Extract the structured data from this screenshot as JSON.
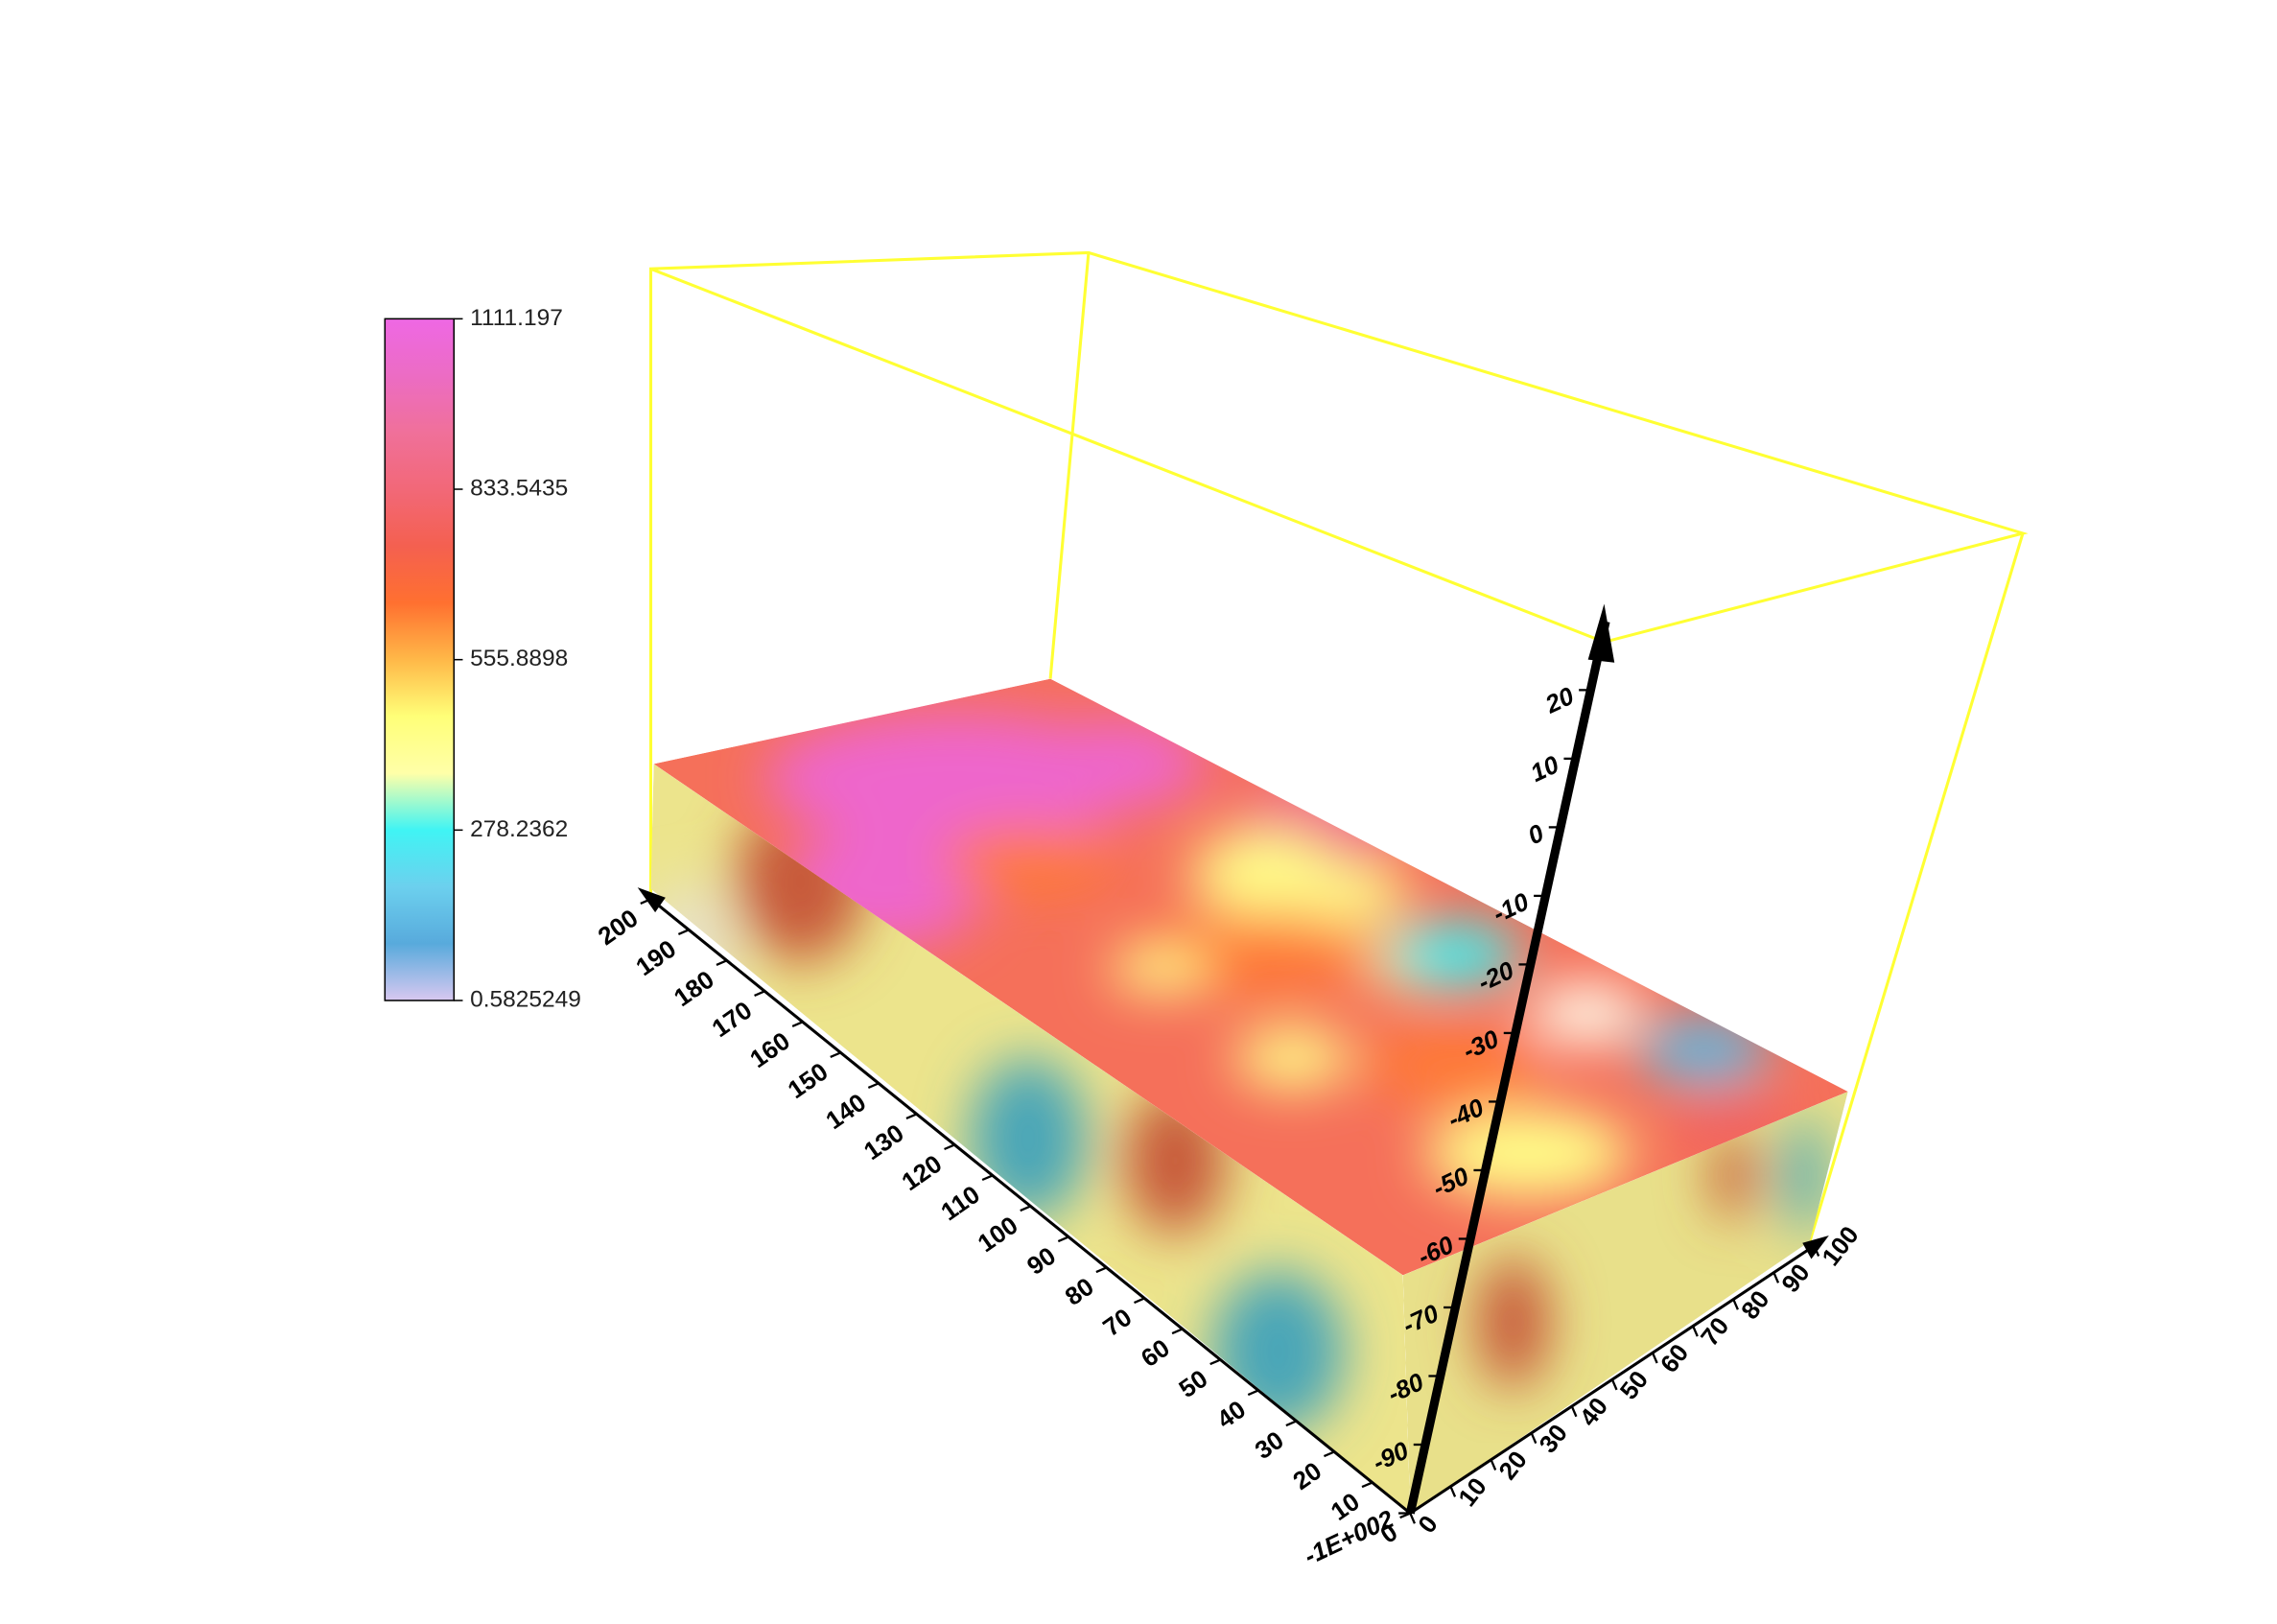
{
  "chart_data": {
    "type": "volume3d",
    "colormap": [
      "#d8c8f0",
      "#58aadc",
      "#6cd0ee",
      "#40f4f4",
      "#ffffa8",
      "#ffff78",
      "#ffb848",
      "#ff7030",
      "#f46050",
      "#f26878",
      "#f0709a",
      "#ec6cc4",
      "#ee68e4"
    ],
    "clim": [
      0.5825249,
      1111.197
    ],
    "cticks": [
      1111.197,
      833.5435,
      555.8898,
      278.2362,
      0.5825249
    ],
    "xlim": [
      0,
      100
    ],
    "xticks": [
      0,
      10,
      20,
      30,
      40,
      50,
      60,
      70,
      80,
      90,
      100
    ],
    "ylim": [
      0,
      200
    ],
    "yticks": [
      0,
      10,
      20,
      30,
      40,
      50,
      60,
      70,
      80,
      90,
      100,
      110,
      120,
      130,
      140,
      150,
      160,
      170,
      180,
      190,
      200
    ],
    "zlim": [
      -100,
      30
    ],
    "zticks": [
      {
        "value": -100,
        "label": "-1E+002"
      },
      -90,
      -80,
      -70,
      -60,
      -50,
      -40,
      -30,
      -20,
      -10,
      0,
      10,
      20
    ],
    "box_color": "#ffff33",
    "axis_color": "#000000"
  }
}
